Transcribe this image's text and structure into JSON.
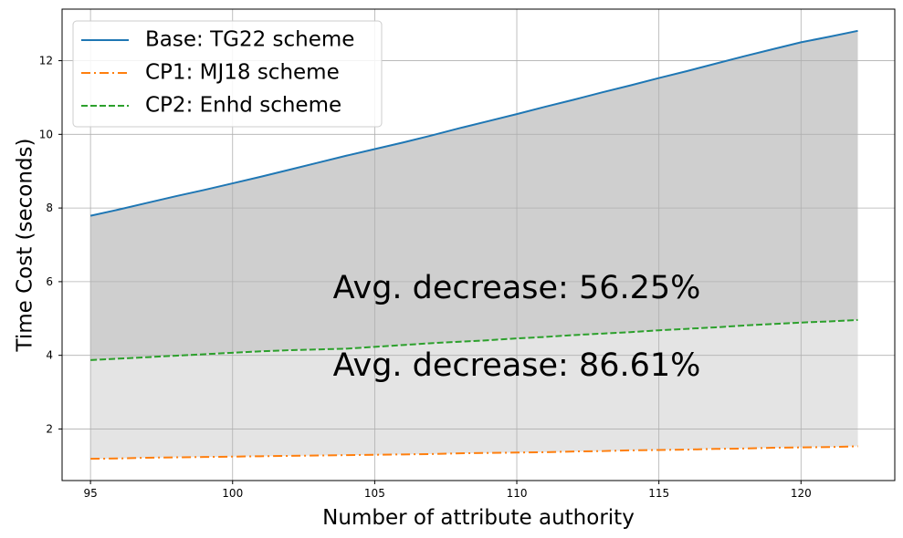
{
  "chart_data": {
    "type": "line",
    "title": "",
    "xlabel": "Number of attribute authority",
    "ylabel": "Time Cost (seconds)",
    "xlim": [
      94,
      123.3
    ],
    "ylim": [
      0.6,
      13.4
    ],
    "x_ticks": [
      95,
      100,
      105,
      110,
      115,
      120
    ],
    "y_ticks": [
      2,
      4,
      6,
      8,
      10,
      12
    ],
    "grid": true,
    "legend_position": "upper-left",
    "x": [
      95,
      96,
      97,
      98,
      99,
      100,
      101,
      102,
      103,
      104,
      105,
      106,
      107,
      108,
      109,
      110,
      111,
      112,
      113,
      114,
      115,
      116,
      117,
      118,
      119,
      120,
      121,
      122
    ],
    "series": [
      {
        "name": "Base: TG22 scheme",
        "color": "#1f77b4",
        "linestyle": "solid",
        "values": [
          7.79,
          7.96,
          8.14,
          8.32,
          8.49,
          8.67,
          8.85,
          9.04,
          9.23,
          9.42,
          9.6,
          9.78,
          9.97,
          10.17,
          10.36,
          10.55,
          10.75,
          10.94,
          11.14,
          11.33,
          11.53,
          11.72,
          11.92,
          12.12,
          12.31,
          12.5,
          12.65,
          12.81
        ]
      },
      {
        "name": "CP1: MJ18 scheme",
        "color": "#ff7f0e",
        "linestyle": "dashdot",
        "values": [
          1.19,
          1.2,
          1.22,
          1.23,
          1.24,
          1.25,
          1.26,
          1.27,
          1.28,
          1.29,
          1.3,
          1.31,
          1.32,
          1.34,
          1.35,
          1.36,
          1.37,
          1.39,
          1.4,
          1.42,
          1.43,
          1.44,
          1.46,
          1.47,
          1.49,
          1.5,
          1.51,
          1.53
        ]
      },
      {
        "name": "CP2: Enhd scheme",
        "color": "#2ca02c",
        "linestyle": "dashed",
        "values": [
          3.87,
          3.91,
          3.95,
          3.99,
          4.03,
          4.07,
          4.11,
          4.14,
          4.16,
          4.18,
          4.23,
          4.28,
          4.33,
          4.37,
          4.41,
          4.46,
          4.5,
          4.55,
          4.59,
          4.63,
          4.68,
          4.72,
          4.76,
          4.81,
          4.85,
          4.89,
          4.92,
          4.96
        ]
      }
    ],
    "shaded_regions": [
      {
        "between": [
          "CP2: Enhd scheme",
          "Base: TG22 scheme"
        ],
        "color": "#cfcfcf"
      },
      {
        "between": [
          "CP1: MJ18 scheme",
          "CP2: Enhd scheme"
        ],
        "color": "#e4e4e4"
      }
    ],
    "annotations": [
      {
        "text": "Avg. decrease: 56.25%",
        "x": 110,
        "y": 5.8
      },
      {
        "text": "Avg. decrease: 86.61%",
        "x": 110,
        "y": 3.7
      }
    ]
  }
}
